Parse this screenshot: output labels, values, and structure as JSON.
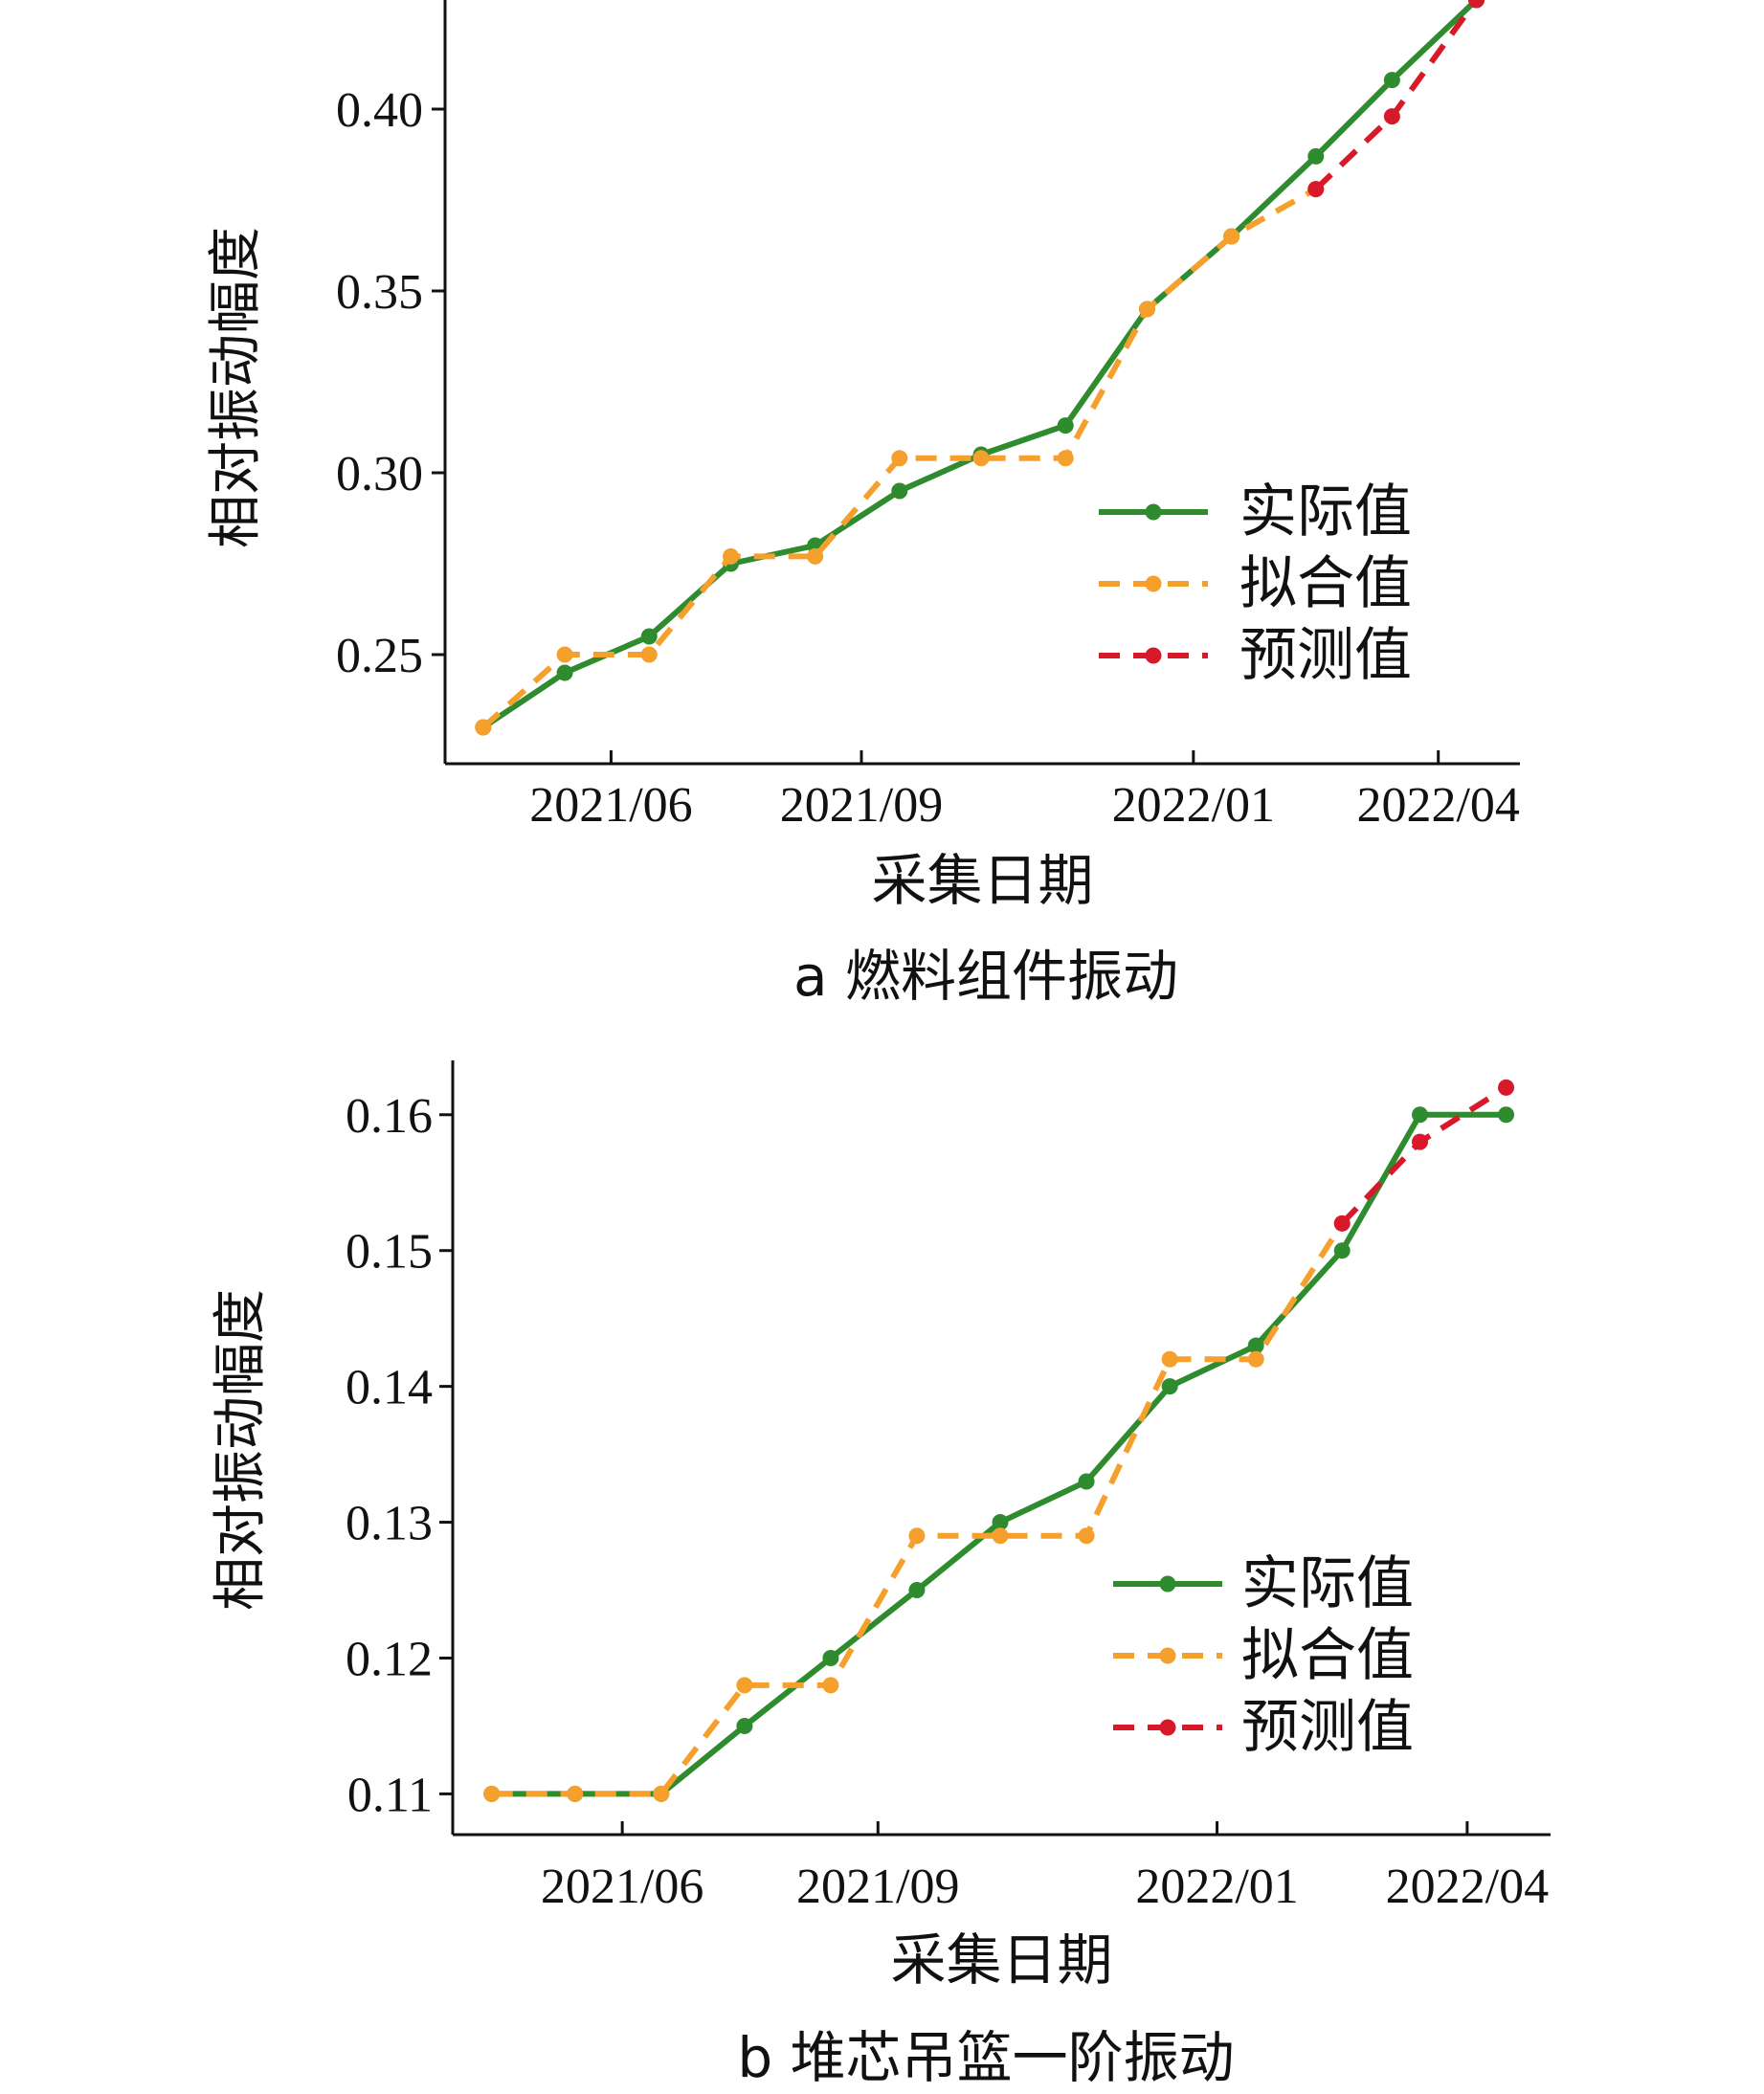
{
  "chart_data": [
    {
      "type": "line",
      "caption": "a  燃料组件振动",
      "xlabel": "采集日期",
      "ylabel": "相对振动幅度",
      "x_ticks": [
        "2021/06",
        "2021/09",
        "2022/01",
        "2022/04"
      ],
      "y_ticks": [
        "0.25",
        "0.30",
        "0.35",
        "0.40"
      ],
      "ylim": [
        0.22,
        0.43
      ],
      "legend_position": "right",
      "series": [
        {
          "name": "实际值",
          "color": "#2e8b2e",
          "style": "solid",
          "points": [
            {
              "x": "2021/04/15",
              "y": 0.23
            },
            {
              "x": "2021/05/15",
              "y": 0.245
            },
            {
              "x": "2021/06/15",
              "y": 0.255
            },
            {
              "x": "2021/07/15",
              "y": 0.275
            },
            {
              "x": "2021/08/15",
              "y": 0.28
            },
            {
              "x": "2021/09/15",
              "y": 0.295
            },
            {
              "x": "2021/10/15",
              "y": 0.305
            },
            {
              "x": "2021/11/15",
              "y": 0.313
            },
            {
              "x": "2021/12/15",
              "y": 0.345
            },
            {
              "x": "2022/01/15",
              "y": 0.365
            },
            {
              "x": "2022/02/15",
              "y": 0.387
            },
            {
              "x": "2022/03/15",
              "y": 0.408
            },
            {
              "x": "2022/04/15",
              "y": 0.43
            }
          ]
        },
        {
          "name": "拟合值",
          "color": "#f5a02c",
          "style": "dashed",
          "points": [
            {
              "x": "2021/04/15",
              "y": 0.23
            },
            {
              "x": "2021/05/15",
              "y": 0.25
            },
            {
              "x": "2021/06/15",
              "y": 0.25
            },
            {
              "x": "2021/07/15",
              "y": 0.277
            },
            {
              "x": "2021/08/15",
              "y": 0.277
            },
            {
              "x": "2021/09/15",
              "y": 0.304
            },
            {
              "x": "2021/10/15",
              "y": 0.304
            },
            {
              "x": "2021/11/15",
              "y": 0.304
            },
            {
              "x": "2021/12/15",
              "y": 0.345
            },
            {
              "x": "2022/01/15",
              "y": 0.365
            },
            {
              "x": "2022/02/15",
              "y": 0.378
            }
          ]
        },
        {
          "name": "预测值",
          "color": "#d7192a",
          "style": "dashed",
          "points": [
            {
              "x": "2022/02/15",
              "y": 0.378
            },
            {
              "x": "2022/03/15",
              "y": 0.398
            },
            {
              "x": "2022/04/15",
              "y": 0.43
            }
          ]
        }
      ]
    },
    {
      "type": "line",
      "caption": "b  堆芯吊篮一阶振动",
      "xlabel": "采集日期",
      "ylabel": "相对振动幅度",
      "x_ticks": [
        "2021/06",
        "2021/09",
        "2022/01",
        "2022/04"
      ],
      "y_ticks": [
        "0.11",
        "0.12",
        "0.13",
        "0.14",
        "0.15",
        "0.16"
      ],
      "ylim": [
        0.107,
        0.164
      ],
      "legend_position": "right",
      "series": [
        {
          "name": "实际值",
          "color": "#2e8b2e",
          "style": "solid",
          "points": [
            {
              "x": "2021/04/15",
              "y": 0.11
            },
            {
              "x": "2021/05/15",
              "y": 0.11
            },
            {
              "x": "2021/06/15",
              "y": 0.11
            },
            {
              "x": "2021/07/15",
              "y": 0.115
            },
            {
              "x": "2021/08/15",
              "y": 0.12
            },
            {
              "x": "2021/09/15",
              "y": 0.125
            },
            {
              "x": "2021/10/15",
              "y": 0.13
            },
            {
              "x": "2021/11/15",
              "y": 0.133
            },
            {
              "x": "2021/12/15",
              "y": 0.14
            },
            {
              "x": "2022/01/15",
              "y": 0.143
            },
            {
              "x": "2022/02/15",
              "y": 0.15
            },
            {
              "x": "2022/03/15",
              "y": 0.16
            },
            {
              "x": "2022/04/15",
              "y": 0.16
            }
          ]
        },
        {
          "name": "拟合值",
          "color": "#f5a02c",
          "style": "dashed",
          "points": [
            {
              "x": "2021/04/15",
              "y": 0.11
            },
            {
              "x": "2021/05/15",
              "y": 0.11
            },
            {
              "x": "2021/06/15",
              "y": 0.11
            },
            {
              "x": "2021/07/15",
              "y": 0.118
            },
            {
              "x": "2021/08/15",
              "y": 0.118
            },
            {
              "x": "2021/09/15",
              "y": 0.129
            },
            {
              "x": "2021/10/15",
              "y": 0.129
            },
            {
              "x": "2021/11/15",
              "y": 0.129
            },
            {
              "x": "2021/12/15",
              "y": 0.142
            },
            {
              "x": "2022/01/15",
              "y": 0.142
            },
            {
              "x": "2022/02/15",
              "y": 0.152
            }
          ]
        },
        {
          "name": "预测值",
          "color": "#d7192a",
          "style": "dashed",
          "points": [
            {
              "x": "2022/02/15",
              "y": 0.152
            },
            {
              "x": "2022/03/15",
              "y": 0.158
            },
            {
              "x": "2022/04/15",
              "y": 0.162
            }
          ]
        }
      ]
    }
  ]
}
